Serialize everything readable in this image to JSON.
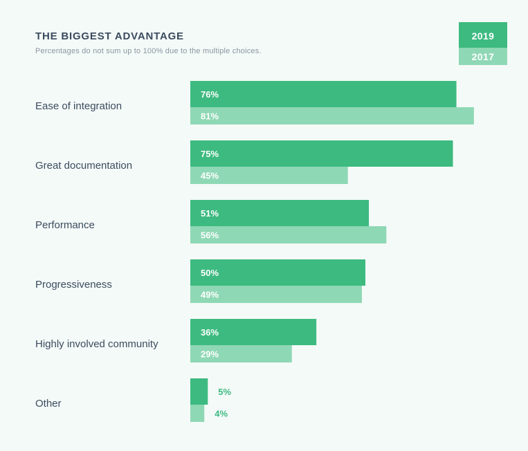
{
  "colors": {
    "background": "#f4faf8",
    "series_2019": "#3dba80",
    "series_2017": "#8fd8b5",
    "text_dark": "#3b4b5e",
    "text_muted": "#8a959f",
    "label_on_bar": "#ffffff"
  },
  "chart_data": {
    "type": "bar",
    "orientation": "horizontal",
    "title": "THE BIGGEST ADVANTAGE",
    "subtitle": "Percentages do not sum up to 100% due to the multiple choices.",
    "xlabel": "",
    "ylabel": "",
    "xlim": [
      0,
      100
    ],
    "grid": false,
    "legend_position": "top-right",
    "categories": [
      "Ease of integration",
      "Great documentation",
      "Performance",
      "Progressiveness",
      "Highly involved community",
      "Other"
    ],
    "series": [
      {
        "name": "2019",
        "values": [
          76,
          75,
          51,
          50,
          36,
          5
        ],
        "labels": [
          "76%",
          "75%",
          "51%",
          "50%",
          "36%",
          "5%"
        ]
      },
      {
        "name": "2017",
        "values": [
          81,
          45,
          56,
          49,
          29,
          4
        ],
        "labels": [
          "81%",
          "45%",
          "56%",
          "49%",
          "29%",
          "4%"
        ]
      }
    ]
  }
}
